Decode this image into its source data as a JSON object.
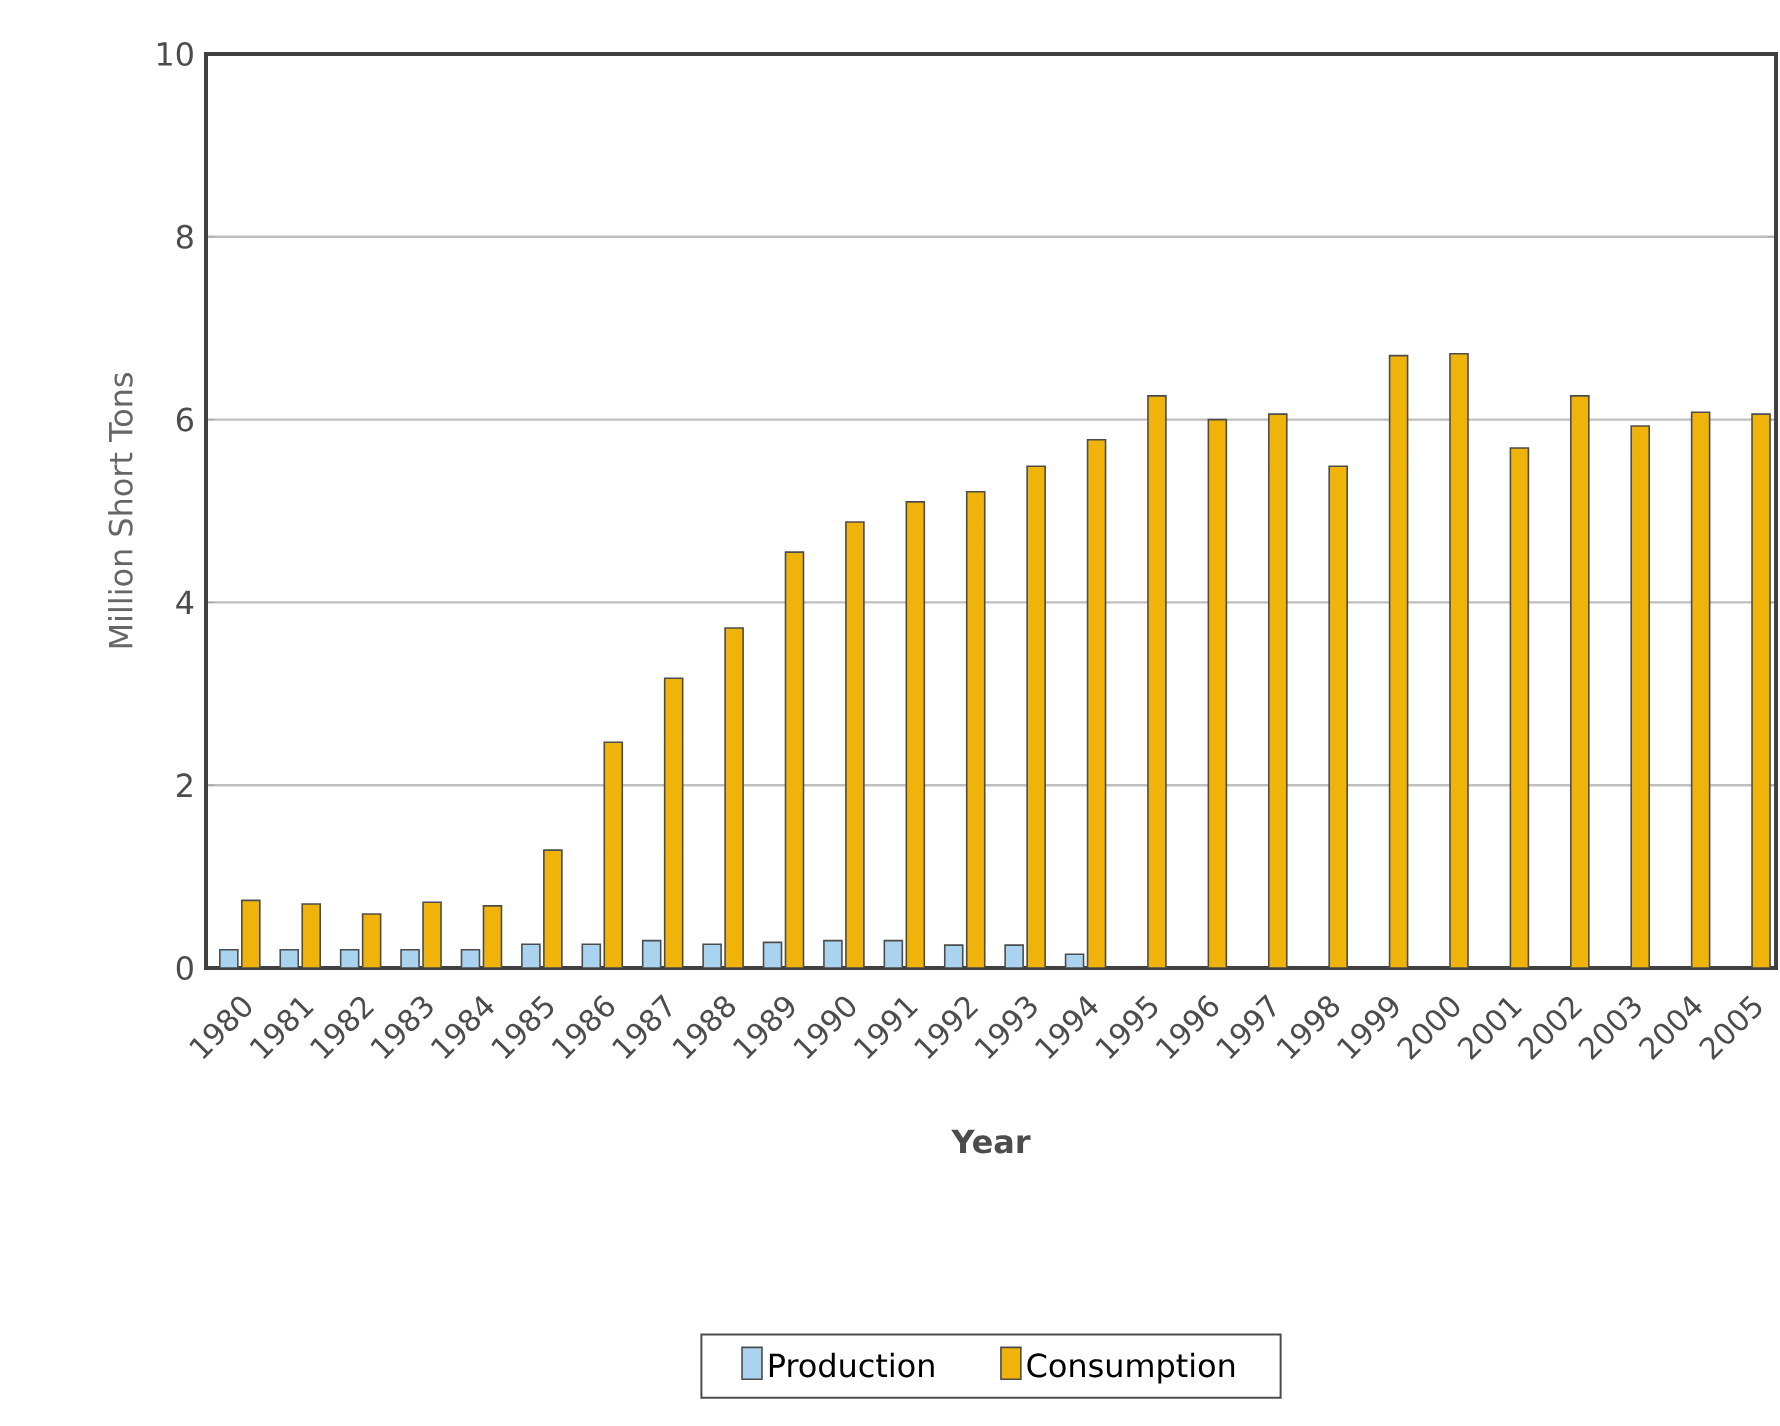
{
  "chart_data": {
    "type": "bar",
    "xlabel": "Year",
    "ylabel": "Million Short Tons",
    "categories": [
      "1980",
      "1981",
      "1982",
      "1983",
      "1984",
      "1985",
      "1986",
      "1987",
      "1988",
      "1989",
      "1990",
      "1991",
      "1992",
      "1993",
      "1994",
      "1995",
      "1996",
      "1997",
      "1998",
      "1999",
      "2000",
      "2001",
      "2002",
      "2003",
      "2004",
      "2005"
    ],
    "series": [
      {
        "name": "Production",
        "color": "#a9d3ef",
        "values": [
          0.2,
          0.2,
          0.2,
          0.2,
          0.2,
          0.26,
          0.26,
          0.3,
          0.26,
          0.28,
          0.3,
          0.3,
          0.25,
          0.25,
          0.15,
          null,
          null,
          null,
          null,
          null,
          null,
          null,
          null,
          null,
          null,
          null
        ]
      },
      {
        "name": "Consumption",
        "color": "#efb30a",
        "values": [
          0.74,
          0.7,
          0.59,
          0.72,
          0.68,
          1.29,
          2.47,
          3.17,
          3.72,
          4.55,
          4.88,
          5.1,
          5.21,
          5.49,
          5.78,
          6.26,
          6.0,
          6.06,
          5.49,
          6.7,
          6.72,
          5.69,
          6.26,
          5.93,
          6.08,
          6.06
        ]
      }
    ],
    "ylim": [
      0,
      10
    ],
    "yticks": [
      0,
      2,
      4,
      6,
      8,
      10
    ],
    "grid": "y",
    "legend": "bottom"
  }
}
